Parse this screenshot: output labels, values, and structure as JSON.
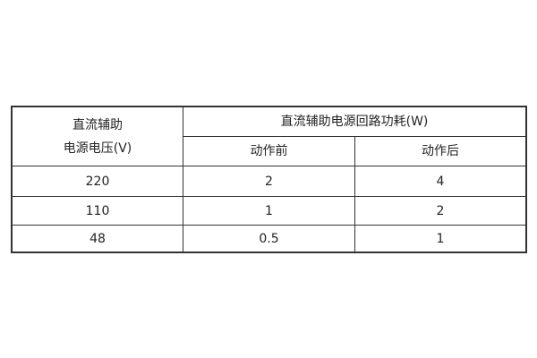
{
  "table": {
    "header": {
      "voltage_line1": "直流辅助",
      "voltage_line2": "电源电压(V)",
      "power_group": "直流辅助电源回路功耗(W)",
      "before": "动作前",
      "after": "动作后"
    },
    "rows": [
      {
        "voltage": "220",
        "before": "2",
        "after": "4"
      },
      {
        "voltage": "110",
        "before": "1",
        "after": "2"
      },
      {
        "voltage": "48",
        "before": "0.5",
        "after": "1"
      }
    ]
  }
}
